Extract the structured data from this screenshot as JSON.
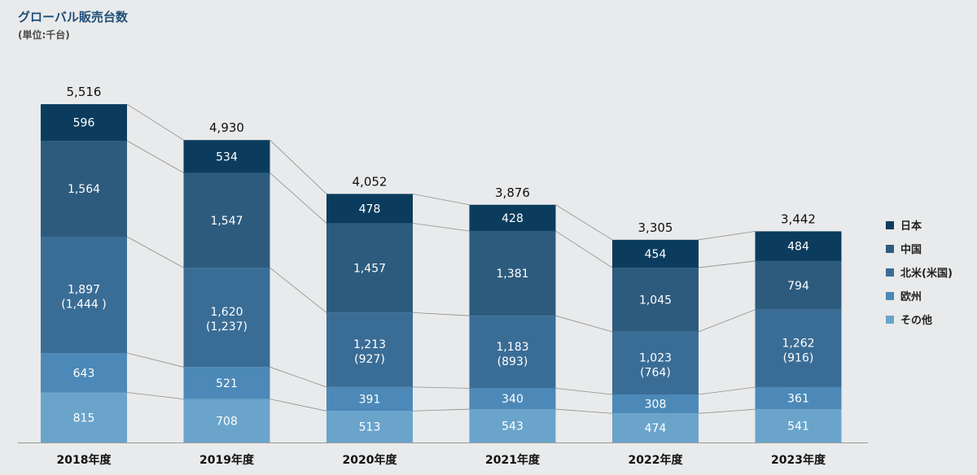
{
  "title": "グローバル販売台数",
  "subtitle": "(単位:千台)",
  "legend": [
    {
      "label": "日本",
      "color": "#0b3c5d"
    },
    {
      "label": "中国",
      "color": "#2d5b7e"
    },
    {
      "label": "北米(米国)",
      "color": "#3a6d96"
    },
    {
      "label": "欧州",
      "color": "#4c89b8"
    },
    {
      "label": "その他",
      "color": "#6aa4cb"
    }
  ],
  "chart_data": {
    "type": "bar",
    "stacked": true,
    "categories": [
      "2018年度",
      "2019年度",
      "2020年度",
      "2021年度",
      "2022年度",
      "2023年度"
    ],
    "totals": [
      5516,
      4930,
      4052,
      3876,
      3305,
      3442
    ],
    "totals_labels": [
      "5,516",
      "4,930",
      "4,052",
      "3,876",
      "3,305",
      "3,442"
    ],
    "series": [
      {
        "name": "その他",
        "color": "#6aa4cb",
        "values": [
          815,
          708,
          513,
          543,
          474,
          541
        ],
        "labels": [
          "815",
          "708",
          "513",
          "543",
          "474",
          "541"
        ]
      },
      {
        "name": "欧州",
        "color": "#4c89b8",
        "values": [
          643,
          521,
          391,
          340,
          308,
          361
        ],
        "labels": [
          "643",
          "521",
          "391",
          "340",
          "308",
          "361"
        ]
      },
      {
        "name": "北米(米国)",
        "color": "#3a6d96",
        "values": [
          1897,
          1620,
          1213,
          1183,
          1023,
          1262
        ],
        "labels": [
          "1,897",
          "1,620",
          "1,213",
          "1,183",
          "1,023",
          "1,262"
        ],
        "sub_values": [
          1444,
          1237,
          927,
          893,
          764,
          916
        ],
        "sub_labels": [
          "(1,444 )",
          "(1,237)",
          "(927)",
          "(893)",
          "(764)",
          "(916)"
        ]
      },
      {
        "name": "中国",
        "color": "#2d5b7e",
        "values": [
          1564,
          1547,
          1457,
          1381,
          1045,
          794
        ],
        "labels": [
          "1,564",
          "1,547",
          "1,457",
          "1,381",
          "1,045",
          "794"
        ]
      },
      {
        "name": "日本",
        "color": "#0b3c5d",
        "values": [
          596,
          534,
          478,
          428,
          454,
          484
        ],
        "labels": [
          "596",
          "534",
          "478",
          "428",
          "454",
          "484"
        ]
      }
    ],
    "ylim": [
      0,
      5516
    ],
    "grid": false,
    "legend_position": "right"
  }
}
